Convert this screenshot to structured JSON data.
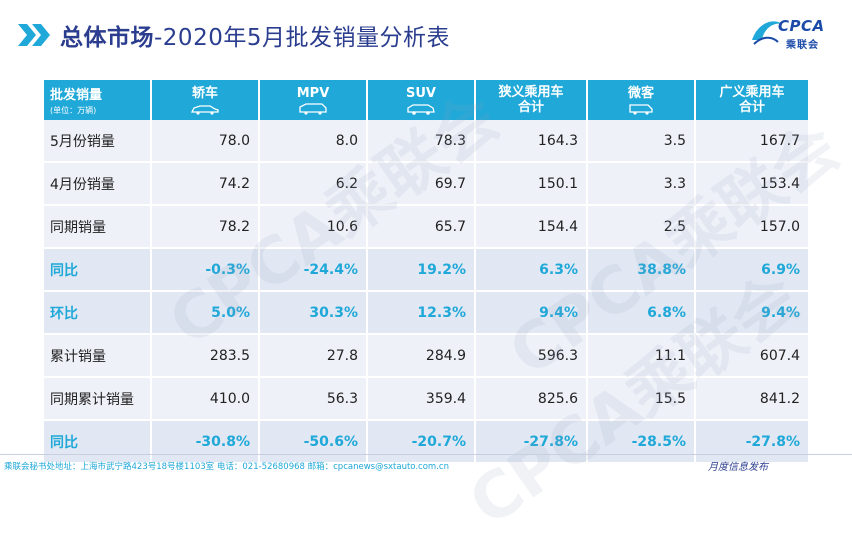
{
  "header": {
    "title_bold": "总体市场",
    "title_rest": "-2020年5月批发销量分析表",
    "logo_text": "CPCA",
    "logo_sub": "乘联会"
  },
  "watermarks": [
    "CPCA乘联会",
    "CPCA乘联会",
    "CPCA乘联会"
  ],
  "table": {
    "corner_label": "批发销量",
    "corner_unit": "(单位：万辆)",
    "columns": [
      {
        "label": "轿车",
        "icon": "sedan-icon"
      },
      {
        "label": "MPV",
        "icon": "mpv-icon"
      },
      {
        "label": "SUV",
        "icon": "suv-icon"
      },
      {
        "label": "狭义乘用车合计",
        "line1": "狭义乘用车",
        "line2": "合计"
      },
      {
        "label": "微客",
        "icon": "minivan-icon"
      },
      {
        "label": "广义乘用车合计",
        "line1": "广义乘用车",
        "line2": "合计"
      }
    ],
    "rows": [
      {
        "label": "5月份销量",
        "kind": "plain",
        "values": [
          "78.0",
          "8.0",
          "78.3",
          "164.3",
          "3.5",
          "167.7"
        ]
      },
      {
        "label": "4月份销量",
        "kind": "plain",
        "values": [
          "74.2",
          "6.2",
          "69.7",
          "150.1",
          "3.3",
          "153.4"
        ]
      },
      {
        "label": "同期销量",
        "kind": "plain",
        "values": [
          "78.2",
          "10.6",
          "65.7",
          "154.4",
          "2.5",
          "157.0"
        ]
      },
      {
        "label": "同比",
        "kind": "pct",
        "values": [
          "-0.3%",
          "-24.4%",
          "19.2%",
          "6.3%",
          "38.8%",
          "6.9%"
        ]
      },
      {
        "label": "环比",
        "kind": "pct",
        "values": [
          "5.0%",
          "30.3%",
          "12.3%",
          "9.4%",
          "6.8%",
          "9.4%"
        ]
      },
      {
        "label": "累计销量",
        "kind": "plain",
        "values": [
          "283.5",
          "27.8",
          "284.9",
          "596.3",
          "11.1",
          "607.4"
        ]
      },
      {
        "label": "同期累计销量",
        "kind": "plain",
        "values": [
          "410.0",
          "56.3",
          "359.4",
          "825.6",
          "15.5",
          "841.2"
        ]
      },
      {
        "label": "同比",
        "kind": "pct",
        "values": [
          "-30.8%",
          "-50.6%",
          "-20.7%",
          "-27.8%",
          "-28.5%",
          "-27.8%"
        ]
      }
    ]
  },
  "footer": {
    "left": "乘联会秘书处地址：上海市武宁路423号18号楼1103室  电话：021-52680968  邮箱：cpcanews@sxtauto.com.cn",
    "right": "月度信息发布"
  },
  "colors": {
    "accent": "#1fa8d8",
    "title": "#2b3d8f",
    "row_plain": "#eef1f8",
    "row_pct": "#e2e8f3"
  }
}
